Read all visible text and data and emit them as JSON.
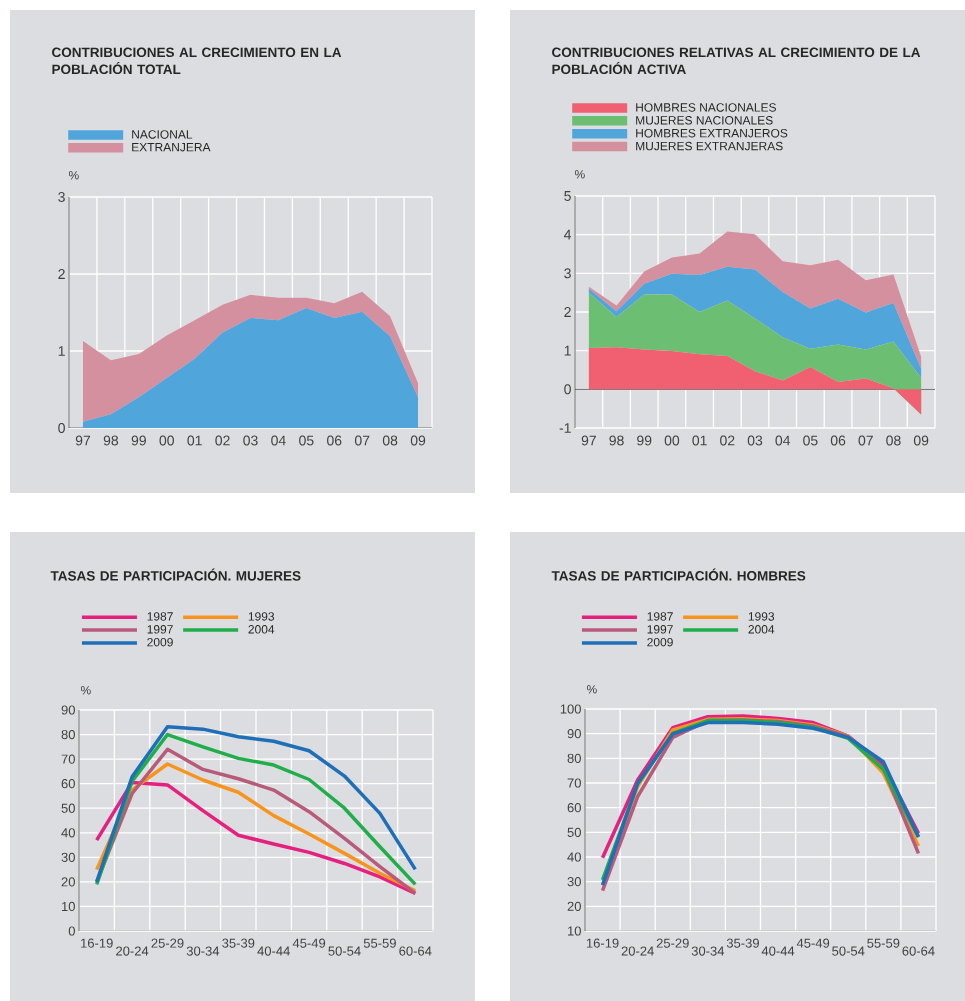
{
  "chart_data": [
    {
      "type": "area",
      "title": "CONTRIBUCIONES AL CRECIMIENTO EN LA POBLACIÓN TOTAL",
      "ylabel": "%",
      "stacked": true,
      "grid": true,
      "legend": "top left",
      "categories": [
        "97",
        "98",
        "99",
        "00",
        "01",
        "02",
        "03",
        "04",
        "05",
        "06",
        "07",
        "08",
        "09"
      ],
      "ylim": [
        0,
        3
      ],
      "yticks": [
        0,
        1,
        2,
        3
      ],
      "series": [
        {
          "name": "NACIONAL",
          "color": "#50a5da",
          "values": [
            0.08,
            0.18,
            0.4,
            0.65,
            0.9,
            1.24,
            1.43,
            1.4,
            1.56,
            1.43,
            1.51,
            1.19,
            0.4
          ]
        },
        {
          "name": "EXTRANJERA",
          "color": "#d5909f",
          "values": [
            1.05,
            0.7,
            0.56,
            0.55,
            0.5,
            0.36,
            0.3,
            0.29,
            0.13,
            0.19,
            0.26,
            0.26,
            0.18
          ]
        }
      ]
    },
    {
      "type": "area",
      "title": "CONTRIBUCIONES RELATIVAS AL CRECIMIENTO DE LA POBLACIÓN ACTIVA",
      "ylabel": "%",
      "stacked": true,
      "grid": true,
      "legend": "top left",
      "categories": [
        "97",
        "98",
        "99",
        "00",
        "01",
        "02",
        "03",
        "04",
        "05",
        "06",
        "07",
        "08",
        "09"
      ],
      "ylim": [
        -1,
        5
      ],
      "yticks": [
        -1,
        0,
        1,
        2,
        3,
        4,
        5
      ],
      "series": [
        {
          "name": "HOMBRES NACIONALES",
          "color": "#f06070",
          "values": [
            1.07,
            1.09,
            1.03,
            0.99,
            0.91,
            0.86,
            0.47,
            0.23,
            0.58,
            0.19,
            0.28,
            0.03,
            -0.65
          ]
        },
        {
          "name": "MUJERES NACIONALES",
          "color": "#6cbf72",
          "values": [
            1.43,
            0.78,
            1.42,
            1.46,
            1.09,
            1.44,
            1.36,
            1.12,
            0.47,
            0.97,
            0.75,
            1.21,
            0.94
          ]
        },
        {
          "name": "HOMBRES EXTRANJEROS",
          "color": "#50a5da",
          "values": [
            0.1,
            0.15,
            0.28,
            0.54,
            0.96,
            0.87,
            1.27,
            1.17,
            1.04,
            1.18,
            0.96,
            0.99,
            0.24
          ]
        },
        {
          "name": "MUJERES EXTRANJERAS",
          "color": "#d5909f",
          "values": [
            0.05,
            0.15,
            0.32,
            0.42,
            0.55,
            0.91,
            0.91,
            0.79,
            1.12,
            1.01,
            0.83,
            0.74,
            0.31
          ]
        }
      ]
    },
    {
      "type": "line",
      "title": "TASAS DE PARTICIPACIÓN. MUJERES",
      "ylabel": "%",
      "grid": true,
      "legend": "top left",
      "categories": [
        "16-19",
        "20-24",
        "25-29",
        "30-34",
        "35-39",
        "40-44",
        "45-49",
        "50-54",
        "55-59",
        "60-64"
      ],
      "ylim": [
        0,
        90
      ],
      "yticks": [
        0,
        10,
        20,
        30,
        40,
        50,
        60,
        70,
        80,
        90
      ],
      "series": [
        {
          "name": "1987",
          "color": "#e5207f",
          "values": [
            37,
            60.5,
            59.5,
            49,
            39,
            35.4,
            32,
            27.5,
            22,
            15.3
          ]
        },
        {
          "name": "1993",
          "color": "#f7941d",
          "values": [
            25,
            57.5,
            68,
            61.5,
            56.5,
            47,
            39.5,
            31.6,
            23.5,
            16.4
          ]
        },
        {
          "name": "1997",
          "color": "#b85b7a",
          "values": [
            20,
            56,
            74,
            65.8,
            62,
            57.4,
            48.6,
            37.7,
            26.2,
            15.3
          ]
        },
        {
          "name": "2004",
          "color": "#1fae4a",
          "values": [
            19,
            61,
            80,
            75,
            70.3,
            67.6,
            61.7,
            50,
            34.3,
            19
          ]
        },
        {
          "name": "2009",
          "color": "#1e6fb7",
          "values": [
            20,
            62.8,
            83.2,
            82.2,
            79.1,
            77.3,
            73.4,
            63.1,
            47.9,
            25.1
          ]
        }
      ]
    },
    {
      "type": "line",
      "title": "TASAS DE PARTICIPACIÓN. HOMBRES",
      "ylabel": "%",
      "grid": true,
      "legend": "top left",
      "categories": [
        "16-19",
        "20-24",
        "25-29",
        "30-34",
        "35-39",
        "40-44",
        "45-49",
        "50-54",
        "55-59",
        "60-64"
      ],
      "ylim": [
        10,
        100
      ],
      "yticks": [
        10,
        20,
        30,
        40,
        50,
        60,
        70,
        80,
        90,
        100
      ],
      "series": [
        {
          "name": "1987",
          "color": "#e5207f",
          "values": [
            39.7,
            71.2,
            92.4,
            96.9,
            97.2,
            96.2,
            94.5,
            89,
            77.3,
            49.6
          ]
        },
        {
          "name": "1993",
          "color": "#f7941d",
          "values": [
            28.6,
            68.5,
            91.5,
            95.8,
            96,
            95.3,
            93.5,
            89,
            74,
            44.5
          ]
        },
        {
          "name": "1997",
          "color": "#b85b7a",
          "values": [
            26.4,
            64.5,
            88.5,
            95.3,
            95.5,
            94.9,
            93.1,
            88.8,
            76,
            41.5
          ]
        },
        {
          "name": "2004",
          "color": "#1fae4a",
          "values": [
            30.7,
            69.6,
            90.1,
            95.3,
            95.3,
            94.5,
            92.6,
            88.1,
            75.5,
            48
          ]
        },
        {
          "name": "2009",
          "color": "#1e6fb7",
          "values": [
            28.6,
            69.9,
            89.9,
            94.5,
            94.5,
            93.8,
            92.2,
            88.5,
            78.6,
            48.2
          ]
        }
      ]
    }
  ]
}
